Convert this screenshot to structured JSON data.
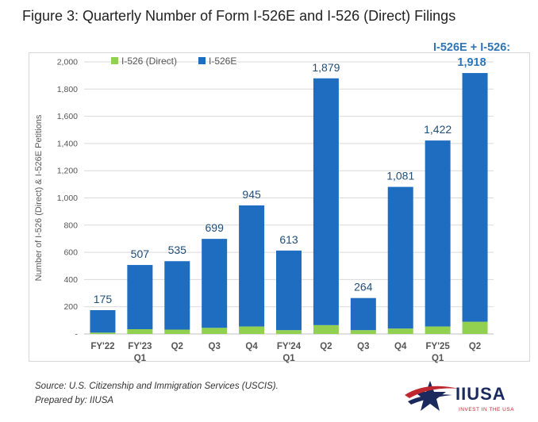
{
  "figure_title": "Figure 3: Quarterly Number of Form I-526E and I-526 (Direct) Filings",
  "footnote": {
    "source": "Source: U.S. Citizenship and Immigration Services (USCIS).",
    "prepared_by": "Prepared by: IIUSA"
  },
  "logo": {
    "name": "IIUSA",
    "tagline": "INVEST IN THE USA",
    "colors": {
      "red": "#c0282f",
      "navy": "#1b2a5c"
    }
  },
  "chart_data": {
    "type": "bar",
    "stacked": true,
    "title": "Figure 3: Quarterly Number of Form I-526E and I-526 (Direct) Filings",
    "xlabel": "",
    "ylabel": "Number of I-526 (Direct) & I-526E Petitions",
    "ylim": [
      0,
      2000
    ],
    "yticks": [
      "-",
      "200",
      "400",
      "600",
      "800",
      "1,000",
      "1,200",
      "1,400",
      "1,600",
      "1,800",
      "2,000"
    ],
    "grid": true,
    "legend_position": "top-left",
    "categories": [
      [
        "FY'22"
      ],
      [
        "FY'23",
        "Q1"
      ],
      [
        "Q2"
      ],
      [
        "Q3"
      ],
      [
        "Q4"
      ],
      [
        "FY'24",
        "Q1"
      ],
      [
        "Q2"
      ],
      [
        "Q3"
      ],
      [
        "Q4"
      ],
      [
        "FY'25",
        "Q1"
      ],
      [
        "Q2"
      ]
    ],
    "series": [
      {
        "name": "I-526 (Direct)",
        "color": "#92d050",
        "values": [
          10,
          35,
          32,
          45,
          55,
          28,
          65,
          28,
          40,
          55,
          90
        ]
      },
      {
        "name": "I-526E",
        "color": "#1f6dc1",
        "values": [
          165,
          472,
          503,
          654,
          890,
          585,
          1814,
          236,
          1041,
          1367,
          1828
        ]
      }
    ],
    "totals": [
      175,
      507,
      535,
      699,
      945,
      613,
      1879,
      264,
      1081,
      1422,
      1918
    ],
    "total_labels": [
      "175",
      "507",
      "535",
      "699",
      "945",
      "613",
      "1,879",
      "264",
      "1,081",
      "1,422",
      "1,918"
    ],
    "callout": {
      "line1": "I-526E + I-526:",
      "line2": "1,918"
    }
  }
}
